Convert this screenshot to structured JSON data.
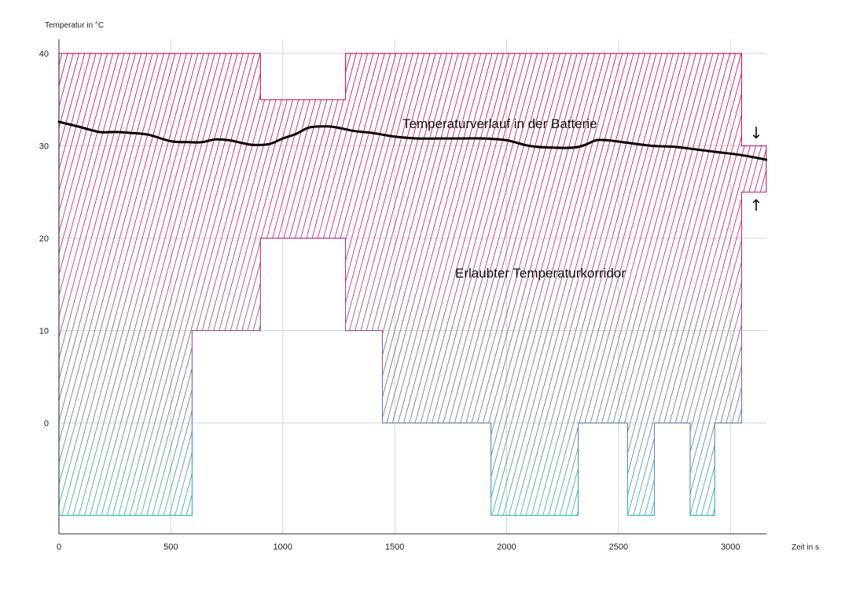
{
  "chart_data": {
    "type": "line",
    "ylabel": "Temperatur in °C",
    "xlabel": "Zeit in s",
    "xlim": [
      0,
      3160
    ],
    "ylim": [
      -10.5,
      42
    ],
    "x_ticks": [
      0,
      500,
      1000,
      1500,
      2000,
      2500,
      3000
    ],
    "y_ticks": [
      0,
      10,
      20,
      30,
      40
    ],
    "x_tick_labels": [
      "0",
      "500",
      "1000",
      "1500",
      "2000",
      "2500",
      "3000"
    ],
    "y_tick_labels": [
      "0",
      "10",
      "20",
      "30",
      "40"
    ],
    "grid": true,
    "annotations": {
      "curve_label": "Temperaturverlauf in der Batterie",
      "corridor_label": "Erlaubter Temperaturkorridor"
    },
    "corridor": {
      "upper": [
        [
          0,
          40
        ],
        [
          900,
          40
        ],
        [
          900,
          35
        ],
        [
          1280,
          35
        ],
        [
          1280,
          40
        ],
        [
          3050,
          40
        ],
        [
          3050,
          30
        ],
        [
          3160,
          30
        ]
      ],
      "lower": [
        [
          0,
          -10
        ],
        [
          595,
          -10
        ],
        [
          595,
          10
        ],
        [
          900,
          10
        ],
        [
          900,
          20
        ],
        [
          1280,
          20
        ],
        [
          1280,
          10
        ],
        [
          1445,
          10
        ],
        [
          1445,
          0
        ],
        [
          1930,
          0
        ],
        [
          1930,
          -10
        ],
        [
          2320,
          -10
        ],
        [
          2320,
          0
        ],
        [
          2540,
          0
        ],
        [
          2540,
          -10
        ],
        [
          2660,
          -10
        ],
        [
          2660,
          0
        ],
        [
          2820,
          0
        ],
        [
          2820,
          -10
        ],
        [
          2930,
          -10
        ],
        [
          2930,
          0
        ],
        [
          3050,
          0
        ],
        [
          3050,
          25
        ],
        [
          3160,
          25
        ]
      ],
      "colors": {
        "top": "#c8186f",
        "bottom": "#3fb6c6"
      }
    },
    "series": [
      {
        "color": "#000000",
        "x": [
          0,
          100,
          180,
          250,
          320,
          400,
          500,
          580,
          640,
          700,
          760,
          820,
          870,
          940,
          1000,
          1060,
          1120,
          1200,
          1260,
          1320,
          1400,
          1500,
          1600,
          1700,
          1800,
          1900,
          2000,
          2100,
          2200,
          2300,
          2350,
          2400,
          2450,
          2550,
          2650,
          2750,
          2850,
          2950,
          3050,
          3160
        ],
        "values": [
          32.6,
          32.0,
          31.5,
          31.5,
          31.4,
          31.2,
          30.5,
          30.4,
          30.4,
          30.7,
          30.6,
          30.3,
          30.1,
          30.2,
          30.8,
          31.3,
          32.0,
          32.1,
          31.9,
          31.6,
          31.4,
          31.0,
          30.8,
          30.8,
          30.8,
          30.8,
          30.6,
          30.0,
          29.8,
          29.8,
          30.1,
          30.6,
          30.6,
          30.3,
          30.0,
          29.9,
          29.6,
          29.3,
          29.0,
          28.5
        ]
      }
    ],
    "markers": {
      "down_arrow": "↓",
      "up_arrow": "↑"
    }
  }
}
